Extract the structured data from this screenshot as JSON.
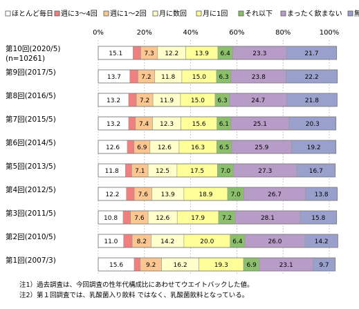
{
  "chart_data": {
    "type": "bar",
    "orientation": "horizontal",
    "stacked": true,
    "percent": true,
    "xlim": [
      0,
      100
    ],
    "x_tick_labels": [
      "0%",
      "20%",
      "40%",
      "60%",
      "80%",
      "100%"
    ],
    "legend_position": "top",
    "categories": [
      "第10回(2020/5)",
      "第9回(2017/5)",
      "第8回(2016/5)",
      "第7回(2015/5)",
      "第6回(2014/5)",
      "第5回(2013/5)",
      "第4回(2012/5)",
      "第3回(2011/5)",
      "第2回(2010/5)",
      "第1回(2007/3)"
    ],
    "category_sublabels": [
      "(n=10261)",
      "",
      "",
      "",
      "",
      "",
      "",
      "",
      "",
      ""
    ],
    "series": [
      {
        "name": "ほとんど毎日",
        "color": "#ffffff",
        "values": [
          15.1,
          13.7,
          13.2,
          13.2,
          12.6,
          11.8,
          12.2,
          10.8,
          11.0,
          15.6
        ]
      },
      {
        "name": "週に3～4回",
        "color": "#f08080",
        "values": [
          3.3,
          3.5,
          3.3,
          2.9,
          2.9,
          2.7,
          3.4,
          3.2,
          3.7,
          2.6
        ]
      },
      {
        "name": "週に1～2回",
        "color": "#fbc68f",
        "values": [
          7.3,
          7.2,
          7.2,
          7.4,
          6.9,
          7.1,
          7.6,
          7.6,
          8.2,
          9.2
        ]
      },
      {
        "name": "月に数回",
        "color": "#ffffcc",
        "values": [
          12.2,
          11.8,
          11.9,
          12.3,
          12.6,
          12.5,
          13.9,
          12.6,
          14.2,
          16.2
        ]
      },
      {
        "name": "月に1回",
        "color": "#ffff99",
        "values": [
          13.9,
          15.0,
          15.0,
          15.6,
          16.3,
          17.5,
          18.9,
          17.9,
          20.0,
          19.3
        ]
      },
      {
        "name": "それ以下",
        "color": "#8cbf6c",
        "values": [
          6.4,
          6.3,
          6.3,
          6.1,
          6.5,
          7.0,
          7.0,
          7.2,
          6.4,
          6.9
        ]
      },
      {
        "name": "まったく飲まない",
        "color": "#b89cc8",
        "values": [
          23.3,
          23.8,
          24.7,
          25.1,
          25.9,
          27.3,
          26.7,
          28.1,
          26.0,
          23.1
        ]
      },
      {
        "name": "無回答",
        "color": "#9aa0cc",
        "values": [
          21.7,
          22.2,
          21.8,
          20.3,
          19.2,
          16.7,
          13.8,
          15.8,
          14.2,
          9.7
        ]
      }
    ],
    "labels": [
      [
        "15.1",
        "",
        "7.3",
        "12.2",
        "13.9",
        "6.4",
        "23.3",
        "21.7"
      ],
      [
        "13.7",
        "",
        "7.2",
        "11.8",
        "15.0",
        "6.3",
        "23.8",
        "22.2"
      ],
      [
        "13.2",
        "",
        "7.2",
        "11.9",
        "15.0",
        "6.3",
        "24.7",
        "21.8"
      ],
      [
        "13.2",
        "",
        "7.4",
        "12.3",
        "15.6",
        "6.1",
        "25.1",
        "20.3"
      ],
      [
        "12.6",
        "",
        "6.9",
        "12.6",
        "16.3",
        "6.5",
        "25.9",
        "19.2"
      ],
      [
        "11.8",
        "",
        "7.1",
        "12.5",
        "17.5",
        "7.0",
        "27.3",
        "16.7"
      ],
      [
        "12.2",
        "",
        "7.6",
        "13.9",
        "18.9",
        "7.0",
        "26.7",
        "13.8"
      ],
      [
        "10.8",
        "",
        "7.6",
        "12.6",
        "17.9",
        "7.2",
        "28.1",
        "15.8"
      ],
      [
        "11.0",
        "",
        "8.2",
        "14.2",
        "20.0",
        "6.4",
        "26.0",
        "14.2"
      ],
      [
        "15.6",
        "",
        "9.2",
        "16.2",
        "19.3",
        "6.9",
        "23.1",
        "9.7"
      ]
    ]
  },
  "notes": [
    "注1）過去調査は、今回調査の性年代構成比にあわせてウエイトバックした値。",
    "注2）第１回調査では、乳酸菌入り飲料 ではなく、乳酸菌飲料となっている。"
  ]
}
